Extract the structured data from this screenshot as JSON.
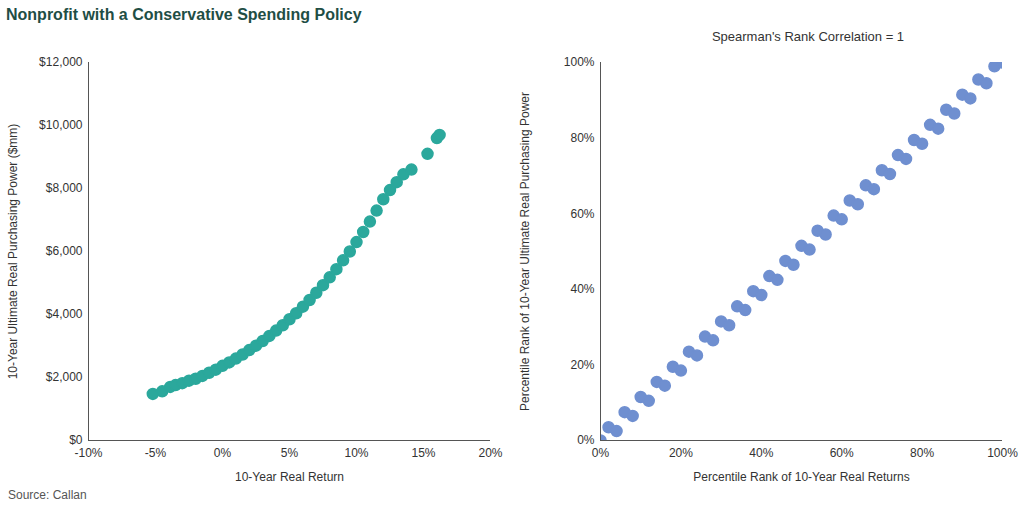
{
  "title": "Nonprofit with a Conservative Spending Policy",
  "source": "Source: Callan",
  "chart_data": [
    {
      "type": "scatter",
      "xlabel": "10-Year Real Return",
      "ylabel": "10-Year Ultimate Real Purchasing Power ($mm)",
      "color": "#2ba89c",
      "marker": "circle",
      "grid": false,
      "xlim": [
        -10,
        20
      ],
      "xticks": [
        {
          "value": -10,
          "label": "-10%"
        },
        {
          "value": -5,
          "label": "-5%"
        },
        {
          "value": 0,
          "label": "0%"
        },
        {
          "value": 5,
          "label": "5%"
        },
        {
          "value": 10,
          "label": "10%"
        },
        {
          "value": 15,
          "label": "15%"
        },
        {
          "value": 20,
          "label": "20%"
        }
      ],
      "ylim": [
        0,
        12000
      ],
      "yticks": [
        {
          "value": 0,
          "label": "$0"
        },
        {
          "value": 2000,
          "label": "$2,000"
        },
        {
          "value": 4000,
          "label": "$4,000"
        },
        {
          "value": 6000,
          "label": "$6,000"
        },
        {
          "value": 8000,
          "label": "$8,000"
        },
        {
          "value": 10000,
          "label": "$10,000"
        },
        {
          "value": 12000,
          "label": "$12,000"
        }
      ],
      "x": [
        -5.2,
        -4.5,
        -3.9,
        -3.5,
        -3.0,
        -2.5,
        -2.0,
        -1.5,
        -1.0,
        -0.5,
        0.0,
        0.5,
        1.0,
        1.5,
        2.0,
        2.5,
        3.0,
        3.5,
        4.0,
        4.5,
        5.0,
        5.5,
        6.0,
        6.5,
        7.0,
        7.5,
        8.0,
        8.5,
        9.0,
        9.5,
        10.0,
        10.5,
        11.0,
        11.5,
        12.0,
        12.5,
        13.0,
        13.5,
        14.1,
        15.3,
        16.0,
        16.2
      ],
      "values": [
        1480,
        1560,
        1700,
        1760,
        1820,
        1900,
        1960,
        2050,
        2150,
        2250,
        2370,
        2480,
        2600,
        2730,
        2870,
        3010,
        3160,
        3320,
        3490,
        3660,
        3850,
        4040,
        4250,
        4460,
        4690,
        4930,
        5180,
        5440,
        5720,
        6000,
        6300,
        6620,
        6950,
        7300,
        7660,
        7950,
        8200,
        8450,
        8600,
        9100,
        9600,
        9700
      ]
    },
    {
      "type": "scatter",
      "title": "Spearman's Rank Correlation = 1",
      "xlabel": "Percentile Rank of 10-Year Real Returns",
      "ylabel": "Percentile Rank of 10-Year Ultimate Real Purchasing Power",
      "color": "#6f8fd0",
      "marker": "circle",
      "grid": false,
      "xlim": [
        0,
        100
      ],
      "xticks": [
        {
          "value": 0,
          "label": "0%"
        },
        {
          "value": 20,
          "label": "20%"
        },
        {
          "value": 40,
          "label": "40%"
        },
        {
          "value": 60,
          "label": "60%"
        },
        {
          "value": 80,
          "label": "80%"
        },
        {
          "value": 100,
          "label": "100%"
        }
      ],
      "ylim": [
        0,
        100
      ],
      "yticks": [
        {
          "value": 0,
          "label": "0%"
        },
        {
          "value": 20,
          "label": "20%"
        },
        {
          "value": 40,
          "label": "40%"
        },
        {
          "value": 60,
          "label": "60%"
        },
        {
          "value": 80,
          "label": "80%"
        },
        {
          "value": 100,
          "label": "100%"
        }
      ],
      "x": [
        0,
        2,
        4,
        6,
        8,
        10,
        12,
        14,
        16,
        18,
        20,
        22,
        24,
        26,
        28,
        30,
        32,
        34,
        36,
        38,
        40,
        42,
        44,
        46,
        48,
        50,
        52,
        54,
        56,
        58,
        60,
        62,
        64,
        66,
        68,
        70,
        72,
        74,
        76,
        78,
        80,
        82,
        84,
        86,
        88,
        90,
        92,
        94,
        96,
        98,
        100
      ],
      "values": [
        0,
        3.5,
        2.5,
        7.5,
        6.5,
        11.5,
        10.5,
        15.5,
        14.5,
        19.5,
        18.5,
        23.5,
        22.5,
        27.5,
        26.5,
        31.5,
        30.5,
        35.5,
        34.5,
        39.5,
        38.5,
        43.5,
        42.5,
        47.5,
        46.5,
        51.5,
        50.5,
        55.5,
        54.5,
        59.5,
        58.5,
        63.5,
        62.5,
        67.5,
        66.5,
        71.5,
        70.5,
        75.5,
        74.5,
        79.5,
        78.5,
        83.5,
        82.5,
        87.5,
        86.5,
        91.5,
        90.5,
        95.5,
        94.5,
        99,
        100
      ]
    }
  ]
}
